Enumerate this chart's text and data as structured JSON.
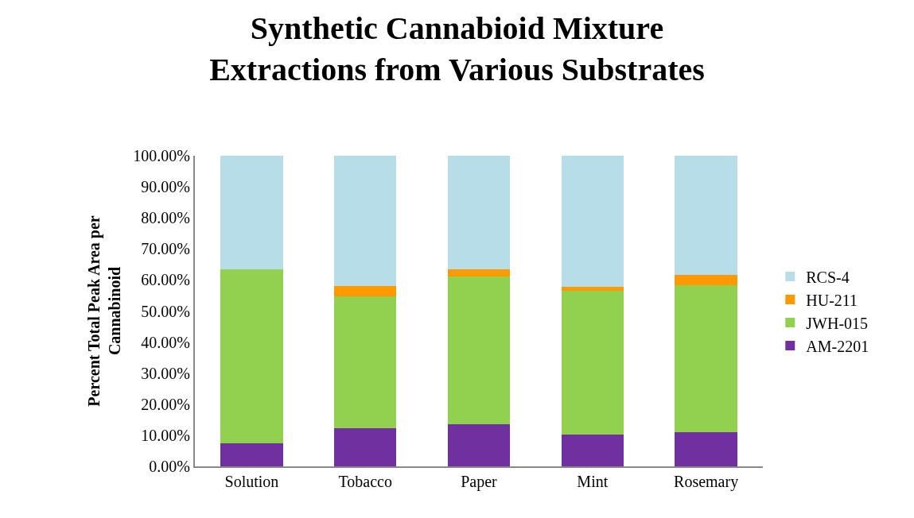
{
  "chart_data": {
    "type": "bar",
    "stacked": true,
    "title": "Synthetic Cannabioid Mixture\nExtractions from Various Substrates",
    "ylabel": "Percent Total Peak Area per\nCannabinoid",
    "categories": [
      "Solution",
      "Tobacco",
      "Paper",
      "Mint",
      "Rosemary"
    ],
    "series": [
      {
        "name": "AM-2201",
        "color": "#7030a0",
        "values": [
          7.5,
          12.4,
          13.6,
          10.3,
          10.9
        ]
      },
      {
        "name": "JWH-015",
        "color": "#92d050",
        "values": [
          56.0,
          42.3,
          47.6,
          46.1,
          47.5
        ]
      },
      {
        "name": "HU-211",
        "color": "#ff9900",
        "values": [
          0,
          3.3,
          2.3,
          1.3,
          3.3
        ]
      },
      {
        "name": "RCS-4",
        "color": "#b7dde8",
        "values": [
          36.5,
          42.0,
          36.5,
          42.3,
          38.3
        ]
      }
    ],
    "ylim": [
      0,
      100
    ],
    "yticks": [
      {
        "value": 0,
        "label": "0.00%"
      },
      {
        "value": 10,
        "label": "10.00%"
      },
      {
        "value": 20,
        "label": "20.00%"
      },
      {
        "value": 30,
        "label": "30.00%"
      },
      {
        "value": 40,
        "label": "40.00%"
      },
      {
        "value": 50,
        "label": "50.00%"
      },
      {
        "value": 60,
        "label": "60.00%"
      },
      {
        "value": 70,
        "label": "70.00%"
      },
      {
        "value": 80,
        "label": "80.00%"
      },
      {
        "value": 90,
        "label": "90.00%"
      },
      {
        "value": 100,
        "label": "100.00%"
      }
    ],
    "legend": "right"
  }
}
